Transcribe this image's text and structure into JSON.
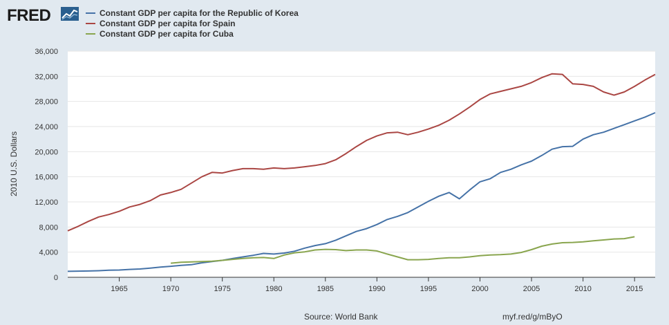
{
  "brand": {
    "logo_text": "FRED"
  },
  "colors": {
    "background": "#e1e9f0",
    "plot_background": "#ffffff",
    "grid": "#e6e6e6",
    "axis": "#333333"
  },
  "footer": {
    "source": "Source: World Bank",
    "link": "myf.red/g/mByO"
  },
  "chart_data": {
    "type": "line",
    "title": "",
    "xlabel": "",
    "ylabel": "2010 U.S. Dollars",
    "xlim": [
      1960,
      2017
    ],
    "ylim": [
      0,
      36000
    ],
    "x_ticks": [
      1965,
      1970,
      1975,
      1980,
      1985,
      1990,
      1995,
      2000,
      2005,
      2010,
      2015
    ],
    "y_ticks": [
      0,
      4000,
      8000,
      12000,
      16000,
      20000,
      24000,
      28000,
      32000,
      36000
    ],
    "y_tick_labels": [
      "0",
      "4,000",
      "8,000",
      "12,000",
      "16,000",
      "20,000",
      "24,000",
      "28,000",
      "32,000",
      "36,000"
    ],
    "grid": true,
    "legend_position": "top-left",
    "series": [
      {
        "name": "Constant GDP per capita for the Republic of Korea",
        "color": "#4572a7",
        "x": [
          1960,
          1961,
          1962,
          1963,
          1964,
          1965,
          1966,
          1967,
          1968,
          1969,
          1970,
          1971,
          1972,
          1973,
          1974,
          1975,
          1976,
          1977,
          1978,
          1979,
          1980,
          1981,
          1982,
          1983,
          1984,
          1985,
          1986,
          1987,
          1988,
          1989,
          1990,
          1991,
          1992,
          1993,
          1994,
          1995,
          1996,
          1997,
          1998,
          1999,
          2000,
          2001,
          2002,
          2003,
          2004,
          2005,
          2006,
          2007,
          2008,
          2009,
          2010,
          2011,
          2012,
          2013,
          2014,
          2015,
          2016,
          2017
        ],
        "y": [
          950,
          980,
          1000,
          1050,
          1120,
          1160,
          1250,
          1320,
          1450,
          1620,
          1750,
          1900,
          2000,
          2300,
          2500,
          2700,
          2980,
          3250,
          3500,
          3800,
          3700,
          3850,
          4150,
          4650,
          5050,
          5350,
          5900,
          6600,
          7300,
          7750,
          8400,
          9200,
          9700,
          10300,
          11200,
          12100,
          12900,
          13500,
          12500,
          13900,
          15200,
          15700,
          16700,
          17200,
          17900,
          18500,
          19400,
          20400,
          20800,
          20850,
          22000,
          22700,
          23100,
          23700,
          24300,
          24900,
          25500,
          26200
        ]
      },
      {
        "name": "Constant GDP per capita for Spain",
        "color": "#aa4643",
        "x": [
          1960,
          1961,
          1962,
          1963,
          1964,
          1965,
          1966,
          1967,
          1968,
          1969,
          1970,
          1971,
          1972,
          1973,
          1974,
          1975,
          1976,
          1977,
          1978,
          1979,
          1980,
          1981,
          1982,
          1983,
          1984,
          1985,
          1986,
          1987,
          1988,
          1989,
          1990,
          1991,
          1992,
          1993,
          1994,
          1995,
          1996,
          1997,
          1998,
          1999,
          2000,
          2001,
          2002,
          2003,
          2004,
          2005,
          2006,
          2007,
          2008,
          2009,
          2010,
          2011,
          2012,
          2013,
          2014,
          2015,
          2016,
          2017
        ],
        "y": [
          7400,
          8100,
          8900,
          9600,
          10000,
          10500,
          11200,
          11600,
          12200,
          13100,
          13500,
          14000,
          15000,
          16000,
          16700,
          16600,
          17000,
          17300,
          17300,
          17200,
          17400,
          17300,
          17400,
          17600,
          17800,
          18100,
          18700,
          19700,
          20800,
          21800,
          22500,
          23000,
          23100,
          22700,
          23100,
          23600,
          24200,
          25000,
          26000,
          27100,
          28300,
          29200,
          29600,
          30000,
          30400,
          31000,
          31800,
          32400,
          32300,
          30800,
          30700,
          30400,
          29500,
          29000,
          29500,
          30400,
          31400,
          32300
        ]
      },
      {
        "name": "Constant GDP per capita for Cuba",
        "color": "#89a54e",
        "x": [
          1970,
          1971,
          1972,
          1973,
          1974,
          1975,
          1976,
          1977,
          1978,
          1979,
          1980,
          1981,
          1982,
          1983,
          1984,
          1985,
          1986,
          1987,
          1988,
          1989,
          1990,
          1991,
          1992,
          1993,
          1994,
          1995,
          1996,
          1997,
          1998,
          1999,
          2000,
          2001,
          2002,
          2003,
          2004,
          2005,
          2006,
          2007,
          2008,
          2009,
          2010,
          2011,
          2012,
          2013,
          2014,
          2015
        ],
        "y": [
          2250,
          2400,
          2450,
          2500,
          2550,
          2700,
          2850,
          3000,
          3100,
          3150,
          3000,
          3550,
          3900,
          4050,
          4350,
          4450,
          4400,
          4250,
          4350,
          4350,
          4200,
          3700,
          3250,
          2800,
          2800,
          2850,
          3000,
          3100,
          3100,
          3250,
          3450,
          3550,
          3600,
          3700,
          3950,
          4400,
          4950,
          5300,
          5500,
          5550,
          5650,
          5800,
          5950,
          6100,
          6150,
          6450
        ]
      }
    ]
  }
}
